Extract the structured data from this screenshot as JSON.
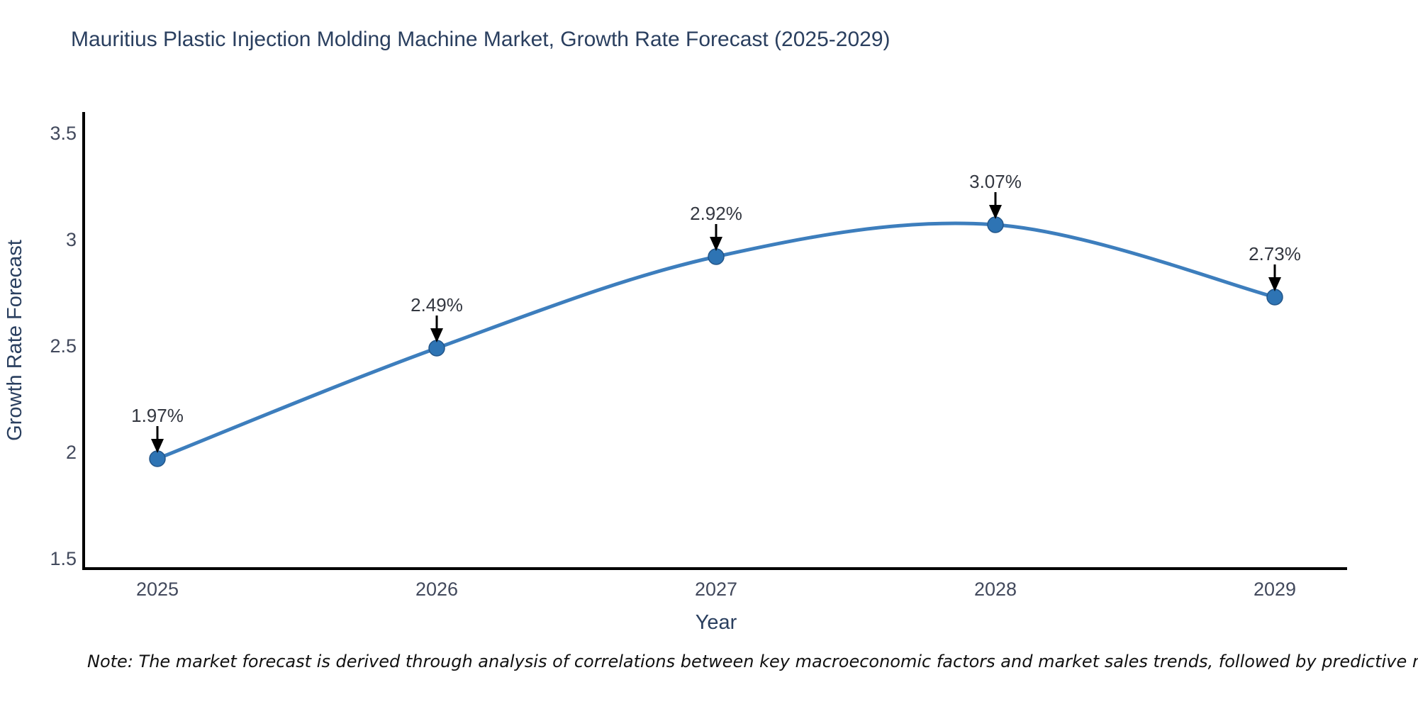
{
  "title": "Mauritius Plastic Injection Molding Machine Market, Growth Rate Forecast (2025-2029)",
  "note": "Note: The market forecast is derived through analysis of correlations between key macroeconomic factors and market sales trends, followed by predictive modeling to project future sales",
  "chart_data": {
    "type": "line",
    "x": [
      2025,
      2026,
      2027,
      2028,
      2029
    ],
    "values": [
      1.97,
      2.49,
      2.92,
      3.07,
      2.73
    ],
    "point_labels": [
      "1.97%",
      "2.49%",
      "2.92%",
      "3.07%",
      "2.73%"
    ],
    "title": "Mauritius Plastic Injection Molding Machine Market, Growth Rate Forecast (2025-2029)",
    "xlabel": "Year",
    "ylabel": "Growth Rate Forecast",
    "xticks": [
      "2025",
      "2026",
      "2027",
      "2028",
      "2029"
    ],
    "yticks": [
      "1.5",
      "2",
      "2.5",
      "3",
      "3.5"
    ],
    "ytick_values": [
      1.5,
      2,
      2.5,
      3,
      3.5
    ],
    "xlim": [
      2024.74,
      2029.26
    ],
    "ylim": [
      1.45,
      3.6
    ],
    "grid": false,
    "legend": "none",
    "curve": "smooth",
    "colors": {
      "line": "#3d7ebd",
      "marker_fill": "#2e74b4",
      "marker_edge": "#23568a",
      "arrow": "#000000",
      "axis_line": "#000000"
    }
  }
}
